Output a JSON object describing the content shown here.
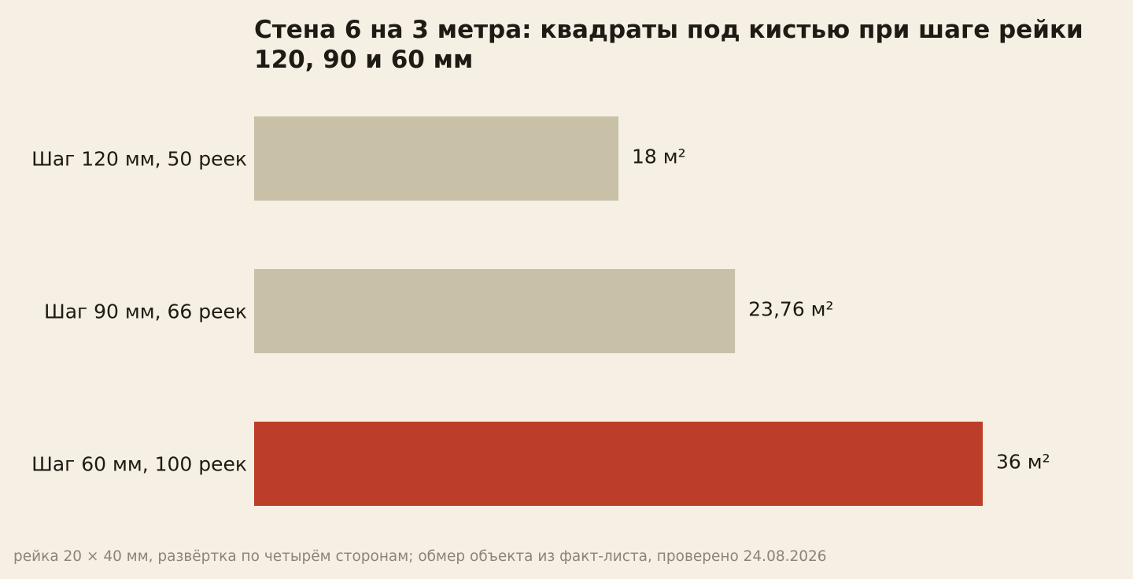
{
  "chart_data": {
    "type": "bar",
    "orientation": "horizontal",
    "title": "Стена 6 на 3 метра: квадраты под кистью при шаге рейки 120, 90 и 60 мм",
    "categories": [
      "Шаг 120 мм, 50 реек",
      "Шаг 90 мм, 66 реек",
      "Шаг 60 мм, 100 реек"
    ],
    "values": [
      18,
      23.76,
      36
    ],
    "value_labels": [
      "18 м²",
      "23,76 м²",
      "36 м²"
    ],
    "unit": "м²",
    "xlim": [
      0,
      36
    ],
    "grid": false,
    "legend": "none",
    "colors": {
      "default": "#c9c0a8",
      "highlight": "#bd3e28",
      "highlight_index": 2
    }
  },
  "note": "рейка 20 × 40 мм, развёртка по четырём сторонам; обмер объекта из факт-листа, проверено 24.08.2026"
}
